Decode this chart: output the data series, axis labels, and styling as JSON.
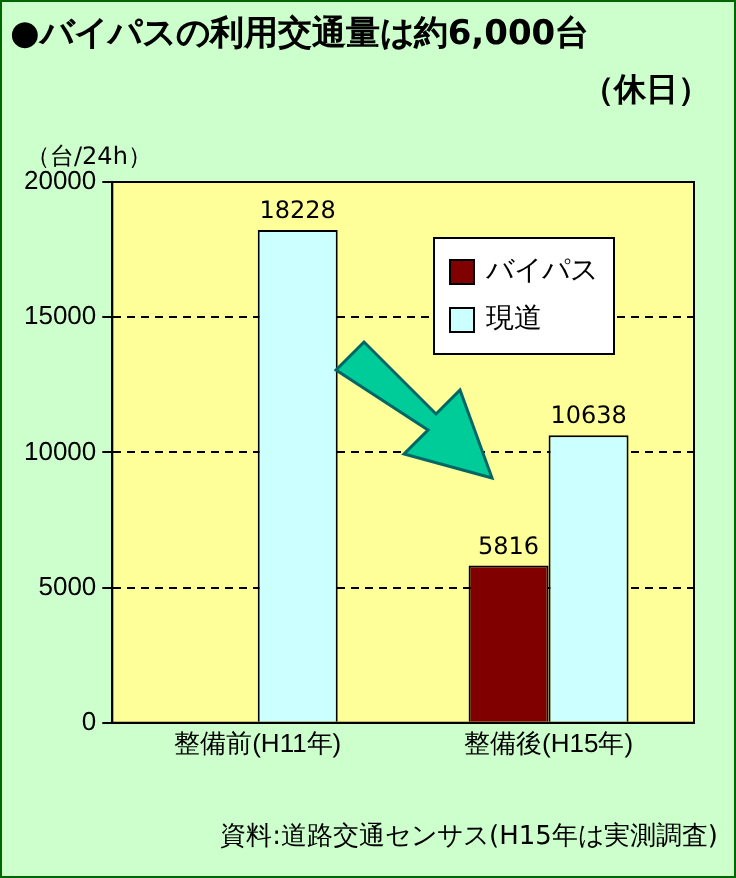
{
  "chart_data": {
    "type": "bar",
    "title": "●バイパスの利用交通量は約6,000台",
    "subtitle": "（休日）",
    "ylabel": "（台/24h）",
    "categories": [
      "整備前(H11年)",
      "整備後(H15年)"
    ],
    "series": [
      {
        "name": "バイパス",
        "color": "#800000",
        "values": [
          null,
          5816
        ]
      },
      {
        "name": "現道",
        "color": "#ccffff",
        "values": [
          18228,
          10638
        ]
      }
    ],
    "ylim": [
      0,
      20000
    ],
    "yticks": [
      0,
      5000,
      10000,
      15000,
      20000
    ],
    "grid": "y",
    "legend": "top right",
    "data_labels": true,
    "annotations": [
      "資料:道路交通センサス(H15年は実測調査)"
    ]
  }
}
